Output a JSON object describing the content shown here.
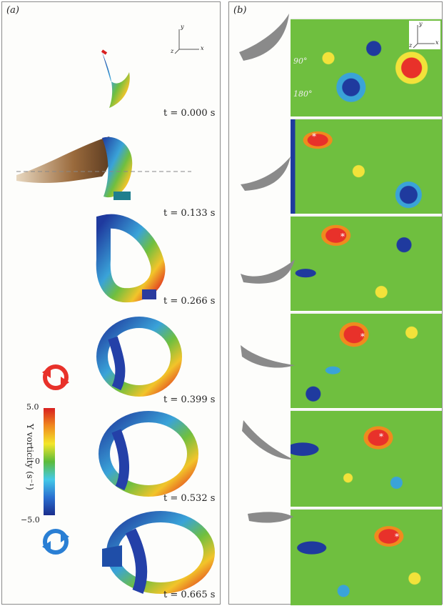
{
  "panel_a": {
    "label": "(a)",
    "time_labels": [
      "t = 0.000 s",
      "t = 0.133 s",
      "t = 0.266 s",
      "t = 0.399 s",
      "t = 0.532 s",
      "t = 0.665 s"
    ],
    "axes": {
      "y": "y",
      "z": "z",
      "x": "x"
    }
  },
  "panel_b": {
    "label": "(b)",
    "angle_labels": [
      "90°",
      "180°"
    ],
    "axes": {
      "y": "y",
      "z": "z",
      "x": "x"
    }
  },
  "colorbar": {
    "title": "Y vorticity (s⁻¹)",
    "max_label": "5.0",
    "mid_label": "0",
    "min_label": "−5.0",
    "colors": [
      "#1a2d8c",
      "#2a6fd0",
      "#44c9e8",
      "#5bbb3a",
      "#f3e62a",
      "#f08a1e",
      "#d81f1f"
    ]
  },
  "rotation_icons": {
    "top": "counterclockwise-red-arrows-icon",
    "bottom": "clockwise-blue-arrows-icon"
  },
  "colors": {
    "red": "#e8312a",
    "blue": "#2a7fd4",
    "green": "#6fbf3f",
    "yellow": "#f2e23a",
    "navy": "#1f3a9e"
  }
}
